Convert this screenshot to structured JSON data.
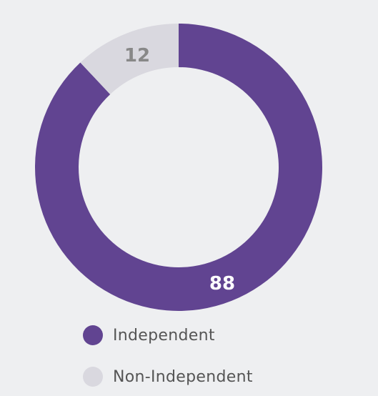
{
  "chart_data": {
    "type": "pie",
    "variant": "donut",
    "title": "",
    "categories": [
      "Independent",
      "Non-Independent"
    ],
    "values": [
      88,
      12
    ],
    "colors": [
      "#614491",
      "#d9d8df"
    ],
    "data_labels": [
      "88",
      "12"
    ],
    "data_label_colors": [
      "#ffffff",
      "#888888"
    ],
    "legend": {
      "position": "bottom-left",
      "items": [
        {
          "label": "Independent",
          "color": "#614491"
        },
        {
          "label": "Non-Independent",
          "color": "#d9d8df"
        }
      ]
    }
  }
}
